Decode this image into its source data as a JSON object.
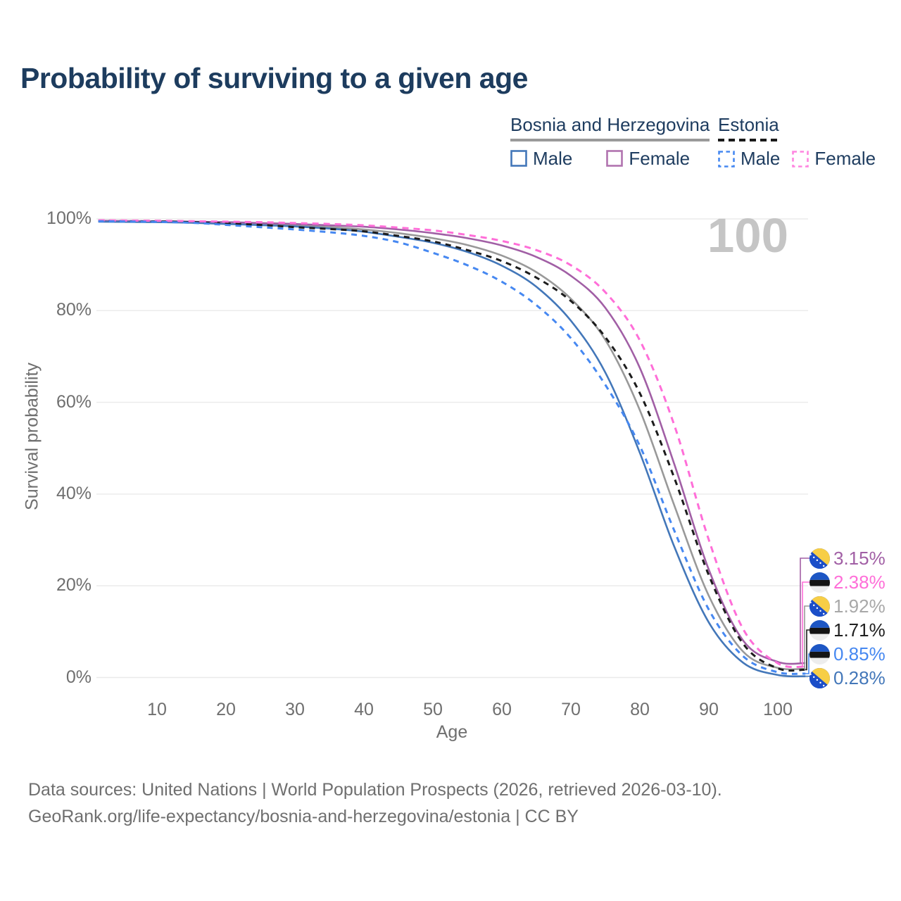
{
  "title": "Probability of surviving to a given age",
  "watermark_age": "100",
  "legend": {
    "groups": [
      {
        "label": "Bosnia and Herzegovina",
        "underline": "solid",
        "underline_color": "#9a9a9a",
        "items": [
          {
            "label": "Male",
            "color": "#4377b9",
            "dashed": false
          },
          {
            "label": "Female",
            "color": "#b173af",
            "dashed": false
          }
        ]
      },
      {
        "label": "Estonia",
        "underline": "dashed",
        "underline_color": "#1a1a1a",
        "items": [
          {
            "label": "Male",
            "color": "#4688f1",
            "dashed": true
          },
          {
            "label": "Female",
            "color": "#ff85e0",
            "dashed": true
          }
        ]
      }
    ]
  },
  "chart_data": {
    "type": "line",
    "title": "Probability of surviving to a given age",
    "xlabel": "Age",
    "ylabel": "Survival probability",
    "xlim": [
      0,
      105
    ],
    "ylim": [
      0,
      100
    ],
    "grid": "horizontal",
    "legend_position": "top-right",
    "x_ticks": [
      10,
      20,
      30,
      40,
      50,
      60,
      70,
      80,
      90,
      100
    ],
    "y_ticks": [
      {
        "value": 0,
        "label": "0%"
      },
      {
        "value": 20,
        "label": "20%"
      },
      {
        "value": 40,
        "label": "40%"
      },
      {
        "value": 60,
        "label": "60%"
      },
      {
        "value": 80,
        "label": "80%"
      },
      {
        "value": 100,
        "label": "100%"
      }
    ],
    "ages": [
      1.5,
      5,
      10,
      15,
      20,
      25,
      30,
      35,
      40,
      45,
      50,
      55,
      60,
      65,
      70,
      75,
      80,
      85,
      90,
      95,
      100,
      104
    ],
    "series": [
      {
        "key": "bosnia_total",
        "name": "Bosnia and Herzegovina Both sexes",
        "color": "#999999",
        "dashed": false,
        "values": [
          99.5,
          99.45,
          99.4,
          99.25,
          99.1,
          98.9,
          98.6,
          98.2,
          97.7,
          96.9,
          95.8,
          94.3,
          92.0,
          88.4,
          82.6,
          73.6,
          58.3,
          37.5,
          17.8,
          5.6,
          2.1,
          1.92
        ]
      },
      {
        "key": "bosnia_female",
        "name": "Bosnia and Herzegovina Female",
        "color": "#a15fa5",
        "dashed": false,
        "values": [
          99.6,
          99.55,
          99.5,
          99.4,
          99.3,
          99.1,
          98.9,
          98.6,
          98.3,
          97.7,
          96.9,
          95.8,
          94.2,
          91.7,
          87.6,
          80.6,
          67.5,
          46.5,
          23.5,
          8.0,
          3.4,
          3.15
        ]
      },
      {
        "key": "bosnia_male",
        "name": "Bosnia and Herzegovina Male",
        "color": "#4377b9",
        "dashed": false,
        "values": [
          99.4,
          99.35,
          99.3,
          99.15,
          98.9,
          98.65,
          98.35,
          97.9,
          97.2,
          96.1,
          94.8,
          92.8,
          89.8,
          85.2,
          77.8,
          66.5,
          49.0,
          28.5,
          12.0,
          3.2,
          0.55,
          0.28
        ]
      },
      {
        "key": "estonia_total",
        "name": "Estonia Both sexes",
        "color": "#1c1c1c",
        "dashed": true,
        "values": [
          99.6,
          99.5,
          99.45,
          99.3,
          99.0,
          98.7,
          98.2,
          97.8,
          97.3,
          96.3,
          95.1,
          93.2,
          90.8,
          87.2,
          82.1,
          74.2,
          62.0,
          43.5,
          22.3,
          7.3,
          2.0,
          1.71
        ]
      },
      {
        "key": "estonia_female",
        "name": "Estonia Female",
        "color": "#ff6ed8",
        "dashed": true,
        "values": [
          99.7,
          99.65,
          99.6,
          99.5,
          99.4,
          99.3,
          99.1,
          98.9,
          98.6,
          98.1,
          97.5,
          96.5,
          95.2,
          93.2,
          89.9,
          84.0,
          73.5,
          55.0,
          30.0,
          10.5,
          3.1,
          2.38
        ]
      },
      {
        "key": "estonia_male",
        "name": "Estonia Male",
        "color": "#4688f1",
        "dashed": true,
        "values": [
          99.5,
          99.45,
          99.35,
          99.15,
          98.7,
          98.2,
          97.7,
          97.1,
          96.3,
          94.9,
          92.6,
          89.9,
          86.3,
          81.2,
          74.0,
          63.8,
          50.5,
          32.0,
          14.8,
          4.6,
          1.15,
          0.85
        ]
      }
    ],
    "end_labels": [
      {
        "series": "bosnia_female",
        "flag": "bosnia",
        "value": "3.15%",
        "color": "#a15fa5"
      },
      {
        "series": "estonia_female",
        "flag": "estonia",
        "value": "2.38%",
        "color": "#ff6ed8"
      },
      {
        "series": "bosnia_total",
        "flag": "bosnia",
        "value": "1.92%",
        "color": "#a8a8a8"
      },
      {
        "series": "estonia_total",
        "flag": "estonia",
        "value": "1.71%",
        "color": "#1f1f1f"
      },
      {
        "series": "estonia_male",
        "flag": "estonia",
        "value": "0.85%",
        "color": "#4688f1"
      },
      {
        "series": "bosnia_male",
        "flag": "bosnia",
        "value": "0.28%",
        "color": "#4377b9"
      }
    ]
  },
  "footer": {
    "line1": "Data sources: United Nations | World Population Prospects (2026, retrieved 2026-03-10).",
    "line2": "GeoRank.org/life-expectancy/bosnia-and-herzegovina/estonia | CC BY"
  }
}
